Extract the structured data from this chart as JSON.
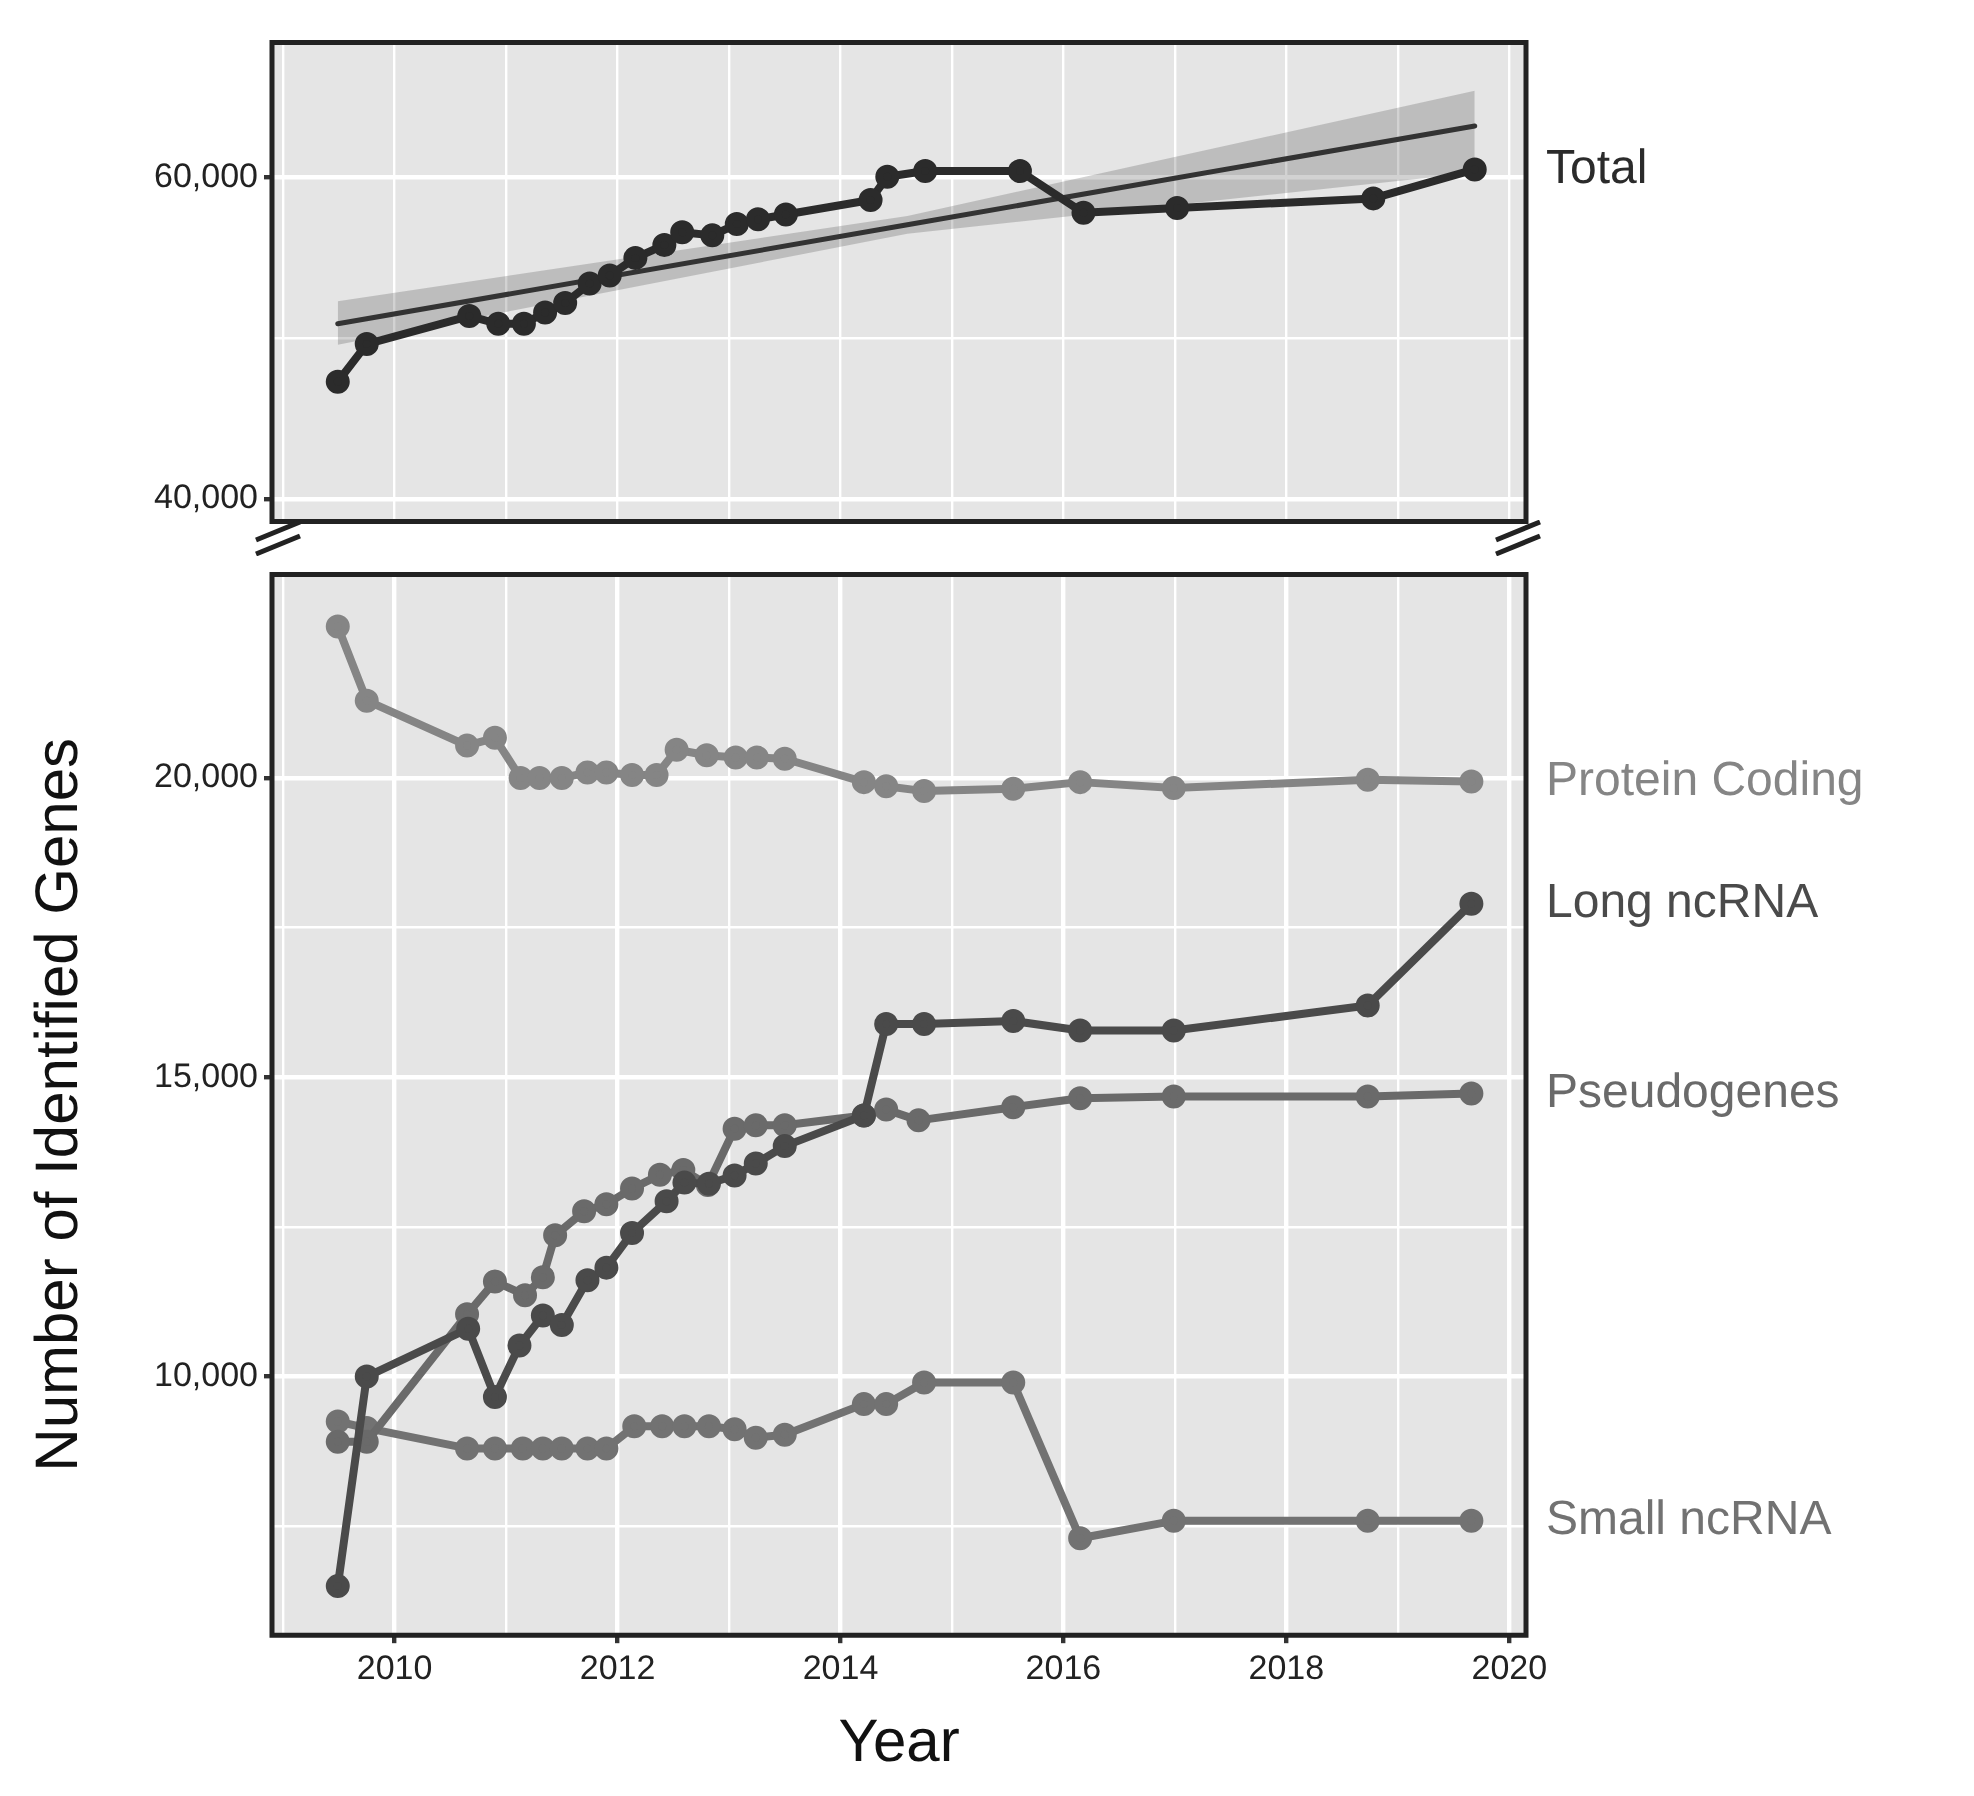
{
  "chart_data": [
    {
      "type": "line",
      "tick_labels": "y",
      "grid": true,
      "marker": "circle",
      "line_style": "solid",
      "xlim": [
        2008.9,
        2020.15
      ],
      "xticks": [
        {
          "value": 2009,
          "label": null
        },
        {
          "value": 2010,
          "label": null
        },
        {
          "value": 2011,
          "label": null
        },
        {
          "value": 2012,
          "label": null
        },
        {
          "value": 2013,
          "label": null
        },
        {
          "value": 2014,
          "label": null
        },
        {
          "value": 2015,
          "label": null
        },
        {
          "value": 2016,
          "label": null
        },
        {
          "value": 2017,
          "label": null
        },
        {
          "value": 2018,
          "label": null
        },
        {
          "value": 2019,
          "label": null
        },
        {
          "value": 2020,
          "label": null
        }
      ],
      "ylim": [
        38600,
        68400
      ],
      "yticks": [
        {
          "value": 40000,
          "label": "40,000"
        },
        {
          "value": 50000,
          "label": null
        },
        {
          "value": 60000,
          "label": "60,000"
        }
      ],
      "series": [
        {
          "name": "Total",
          "color": "#2b2b2b",
          "x": [
            2009.49,
            2009.75,
            2010.67,
            2010.93,
            2011.16,
            2011.35,
            2011.53,
            2011.75,
            2011.93,
            2012.16,
            2012.42,
            2012.58,
            2012.85,
            2013.07,
            2013.26,
            2013.51,
            2014.27,
            2014.42,
            2014.76,
            2015.61,
            2016.18,
            2017.02,
            2018.78,
            2019.69
          ],
          "values": [
            47300,
            49640,
            51380,
            50900,
            50900,
            51600,
            52200,
            53400,
            53900,
            55000,
            55800,
            56600,
            56400,
            57100,
            57400,
            57700,
            58600,
            60050,
            60400,
            60400,
            57800,
            58100,
            58700,
            60500
          ]
        },
        {
          "type": "line",
          "color": "#333333",
          "marker": "none",
          "x": [
            2009.49,
            2014.6,
            2019.69
          ],
          "values": [
            50900,
            57060,
            63200
          ],
          "lower": [
            49600,
            56500,
            60300
          ],
          "upper": [
            52300,
            57600,
            65400
          ]
        }
      ]
    },
    {
      "type": "line",
      "ylabel": "Number of Identified Genes",
      "xlabel": "Year",
      "grid": true,
      "marker": "circle",
      "line_style": "solid",
      "xlim": [
        2008.9,
        2020.15
      ],
      "xticks": [
        {
          "value": 2009,
          "label": null
        },
        2010,
        {
          "value": 2011,
          "label": null
        },
        2012,
        {
          "value": 2013,
          "label": null
        },
        2014,
        {
          "value": 2015,
          "label": null
        },
        2016,
        {
          "value": 2017,
          "label": null
        },
        2018,
        {
          "value": 2019,
          "label": null
        },
        2020
      ],
      "ylim": [
        5680,
        23400
      ],
      "yticks": [
        {
          "value": 7500,
          "label": null
        },
        {
          "value": 10000,
          "label": "10,000"
        },
        {
          "value": 12500,
          "label": null
        },
        {
          "value": 15000,
          "label": "15,000"
        },
        {
          "value": 17500,
          "label": null
        },
        {
          "value": 20000,
          "label": "20,000"
        }
      ],
      "series": [
        {
          "name": "Protein Coding",
          "color": "#858585",
          "x": [
            2009.49,
            2009.75,
            2010.65,
            2010.9,
            2011.13,
            2011.3,
            2011.5,
            2011.73,
            2011.9,
            2012.13,
            2012.35,
            2012.53,
            2012.8,
            2013.06,
            2013.25,
            2013.5,
            2014.21,
            2014.41,
            2014.75,
            2015.55,
            2016.15,
            2016.99,
            2018.73,
            2019.66
          ],
          "values": [
            22530,
            21290,
            20540,
            20670,
            20000,
            20000,
            20000,
            20090,
            20090,
            20050,
            20050,
            20470,
            20380,
            20340,
            20340,
            20320,
            19930,
            19860,
            19780,
            19820,
            19930,
            19830,
            19970,
            19940
          ]
        },
        {
          "name": "Long ncRNA",
          "color": "#4a4a4a",
          "x": [
            2009.49,
            2009.75,
            2010.66,
            2010.9,
            2011.12,
            2011.33,
            2011.5,
            2011.73,
            2011.9,
            2012.13,
            2012.44,
            2012.6,
            2012.82,
            2013.05,
            2013.24,
            2013.5,
            2014.21,
            2014.41,
            2014.75,
            2015.55,
            2016.15,
            2016.99,
            2018.73,
            2019.66
          ],
          "values": [
            6500,
            10000,
            10800,
            9660,
            10520,
            11020,
            10860,
            11610,
            11820,
            12400,
            12930,
            13240,
            13220,
            13360,
            13560,
            13850,
            14360,
            15890,
            15890,
            15940,
            15780,
            15780,
            16200,
            17900
          ]
        },
        {
          "name": "Pseudogenes",
          "color": "#6a6a6a",
          "x": [
            2009.49,
            2009.75,
            2010.65,
            2010.9,
            2011.17,
            2011.33,
            2011.44,
            2011.7,
            2011.9,
            2012.13,
            2012.38,
            2012.59,
            2012.81,
            2013.05,
            2013.24,
            2013.5,
            2014.21,
            2014.41,
            2014.7,
            2015.55,
            2016.15,
            2016.99,
            2018.73,
            2019.66
          ],
          "values": [
            8910,
            8910,
            11040,
            11590,
            11360,
            11660,
            12360,
            12760,
            12880,
            13140,
            13370,
            13450,
            13200,
            14140,
            14200,
            14200,
            14360,
            14460,
            14280,
            14500,
            14650,
            14680,
            14680,
            14730
          ]
        },
        {
          "name": "Small ncRNA",
          "color": "#727272",
          "x": [
            2009.49,
            2009.75,
            2010.65,
            2010.9,
            2011.15,
            2011.33,
            2011.5,
            2011.73,
            2011.9,
            2012.15,
            2012.4,
            2012.6,
            2012.82,
            2013.05,
            2013.24,
            2013.5,
            2014.21,
            2014.41,
            2014.75,
            2015.55,
            2016.15,
            2016.99,
            2018.73,
            2019.66
          ],
          "values": [
            9250,
            9140,
            8800,
            8800,
            8800,
            8800,
            8800,
            8800,
            8800,
            9170,
            9170,
            9170,
            9170,
            9120,
            8980,
            9030,
            9540,
            9540,
            9900,
            9900,
            7300,
            7590,
            7590,
            7590
          ]
        }
      ]
    }
  ]
}
